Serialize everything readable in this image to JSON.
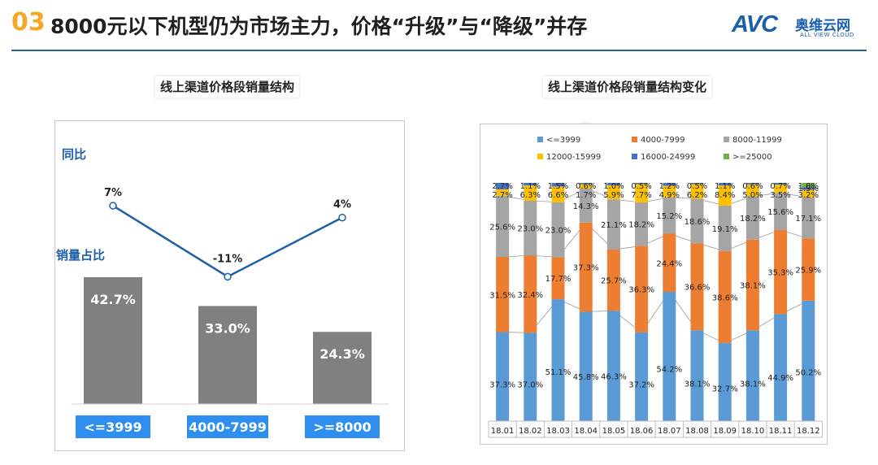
{
  "header": {
    "section_number": "03",
    "title": "8000元以下机型仍为市场主力，价格“升级”与“降级”并存",
    "logo_mark": "AVC",
    "logo_cn": "奥维云网",
    "logo_en": "ALL VIEW CLOUD"
  },
  "left_panel": {
    "title": "线上渠道价格段销量结构",
    "yoy_label": "同比",
    "share_label": "销量占比"
  },
  "right_panel": {
    "title": "线上渠道价格段销量结构变化"
  },
  "colors": {
    "accent": "#f5a623",
    "brand": "#1b5fae",
    "bar_gray": "#808080",
    "label_blue": "#2e8ff0",
    "s1": "#5b9bd5",
    "s2": "#ed7d31",
    "s3": "#a5a5a5",
    "s4": "#ffc000",
    "s5": "#4472c4",
    "s6": "#70ad47"
  },
  "chart_data": [
    {
      "type": "line",
      "title": "同比",
      "categories": [
        "<=3999",
        "4000-7999",
        ">=8000"
      ],
      "values": [
        7,
        -11,
        4
      ],
      "labels": [
        "7%",
        "-11%",
        "4%"
      ]
    },
    {
      "type": "bar",
      "title": "线上渠道价格段销量结构",
      "categories": [
        "<=3999",
        "4000-7999",
        ">=8000"
      ],
      "values": [
        42.7,
        33.0,
        24.3
      ],
      "labels": [
        "42.7%",
        "33.0%",
        "24.3%"
      ],
      "ylim": [
        0,
        50
      ]
    },
    {
      "type": "bar",
      "stacked": true,
      "title": "线上渠道价格段销量结构变化",
      "categories": [
        "18.01",
        "18.02",
        "18.03",
        "18.04",
        "18.05",
        "18.06",
        "18.07",
        "18.08",
        "18.09",
        "18.10",
        "18.11",
        "18.12"
      ],
      "series": [
        {
          "name": "<=3999",
          "values": [
            37.3,
            37.0,
            51.1,
            45.8,
            46.3,
            37.2,
            54.2,
            38.1,
            32.7,
            38.1,
            44.9,
            50.2
          ]
        },
        {
          "name": "4000-7999",
          "values": [
            31.5,
            32.4,
            17.7,
            37.3,
            25.7,
            36.3,
            24.4,
            36.6,
            38.6,
            38.1,
            35.3,
            25.9
          ]
        },
        {
          "name": "8000-11999",
          "values": [
            25.6,
            23.0,
            23.0,
            14.3,
            21.1,
            18.2,
            15.2,
            18.6,
            19.1,
            18.2,
            15.6,
            17.1
          ]
        },
        {
          "name": "12000-15999",
          "values": [
            2.7,
            6.3,
            6.6,
            1.7,
            5.9,
            7.7,
            4.9,
            6.2,
            8.4,
            5.0,
            3.5,
            3.2
          ]
        },
        {
          "name": "16000-24999",
          "values": [
            2.7,
            1.1,
            1.5,
            0.6,
            1.0,
            0.5,
            1.2,
            0.5,
            1.1,
            0.6,
            0.7,
            1.0
          ]
        },
        {
          "name": ">=25000",
          "values": [
            0.0,
            0.0,
            0.0,
            0.0,
            0.0,
            0.0,
            0.0,
            0.0,
            0.0,
            0.0,
            0.0,
            1.9
          ]
        }
      ],
      "legend": [
        "<=3999",
        "4000-7999",
        "8000-11999",
        "12000-15999",
        "16000-24999",
        ">=25000"
      ],
      "ylim": [
        0,
        100
      ]
    }
  ]
}
